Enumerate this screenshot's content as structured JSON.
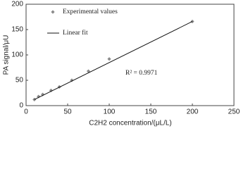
{
  "chart_data": {
    "type": "scatter",
    "xlabel": "C2H2 concentration/(μL/L)",
    "ylabel": "PA signal/μU",
    "annotation": "R² = 0.9971",
    "xlim": [
      0,
      250
    ],
    "xticks": [
      0,
      50,
      100,
      150,
      200,
      250
    ],
    "ylim": [
      0,
      200
    ],
    "yticks": [
      0,
      50,
      100,
      150,
      200
    ],
    "series": [
      {
        "name": "Experimental values",
        "type": "scatter",
        "color": "#8a8a8a",
        "x": [
          10,
          15,
          20,
          30,
          40,
          55,
          75,
          100,
          200
        ],
        "values": [
          12,
          18,
          22,
          30,
          37,
          50,
          68,
          92,
          166
        ]
      },
      {
        "name": "Linear fit",
        "type": "line",
        "color": "#111111",
        "x": [
          10,
          200
        ],
        "values": [
          12,
          166
        ]
      }
    ]
  }
}
